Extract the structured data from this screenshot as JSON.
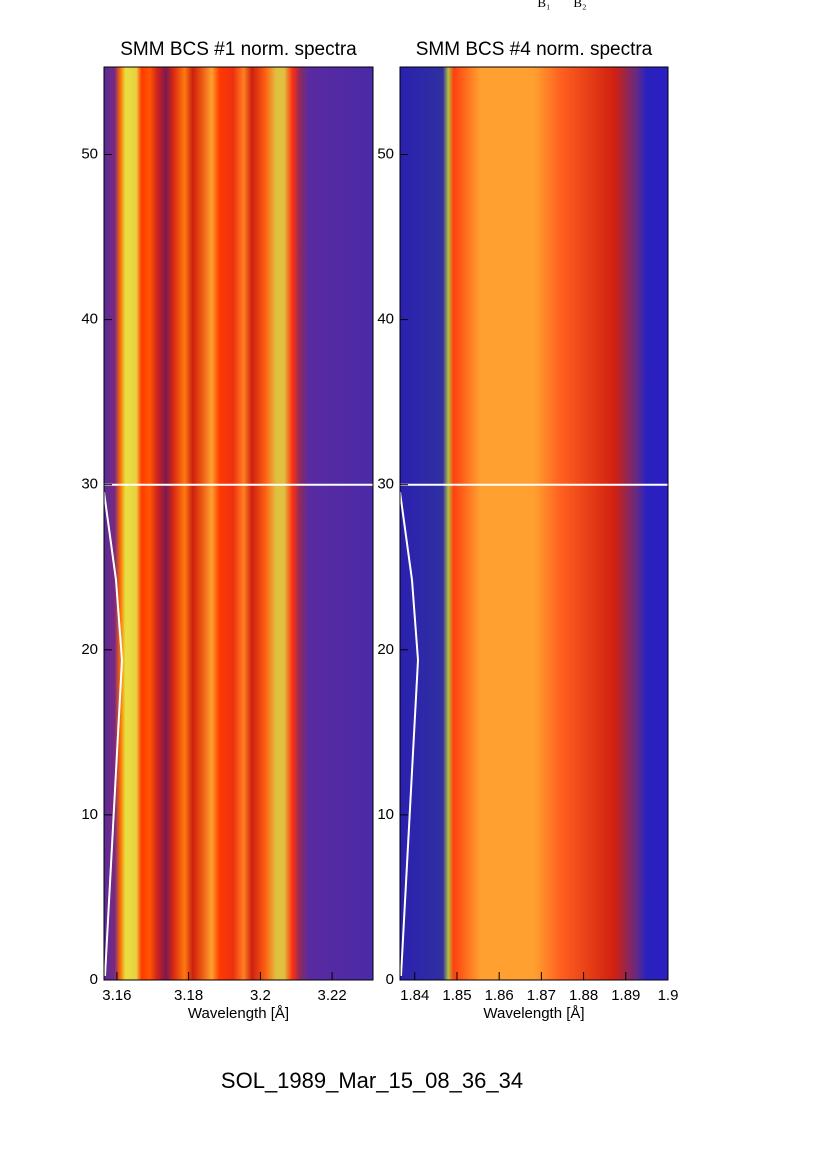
{
  "top_labels": [
    "B₁",
    "B₂"
  ],
  "footer": "SOL_1989_Mar_15_08_36_34",
  "chart_data": [
    {
      "type": "heatmap",
      "title": "SMM BCS #1 norm. spectra",
      "xlabel": "Wavelength [Å]",
      "xlim": [
        3.1564,
        3.2314
      ],
      "xticks": [
        3.16,
        3.18,
        3.2,
        3.22
      ],
      "ylim": [
        0,
        55.3
      ],
      "yticks": [
        0,
        10,
        20,
        30,
        40,
        50
      ],
      "hline": 30
    },
    {
      "type": "heatmap",
      "title": "SMM BCS #4 norm. spectra",
      "xlabel": "Wavelength [Å]",
      "xlim": [
        1.8365,
        1.9
      ],
      "xticks": [
        1.84,
        1.85,
        1.86,
        1.87,
        1.88,
        1.89,
        1.9
      ],
      "ylim": [
        0,
        55.3
      ],
      "yticks": [
        0,
        10,
        20,
        30,
        40,
        50
      ],
      "hline": 30
    }
  ]
}
